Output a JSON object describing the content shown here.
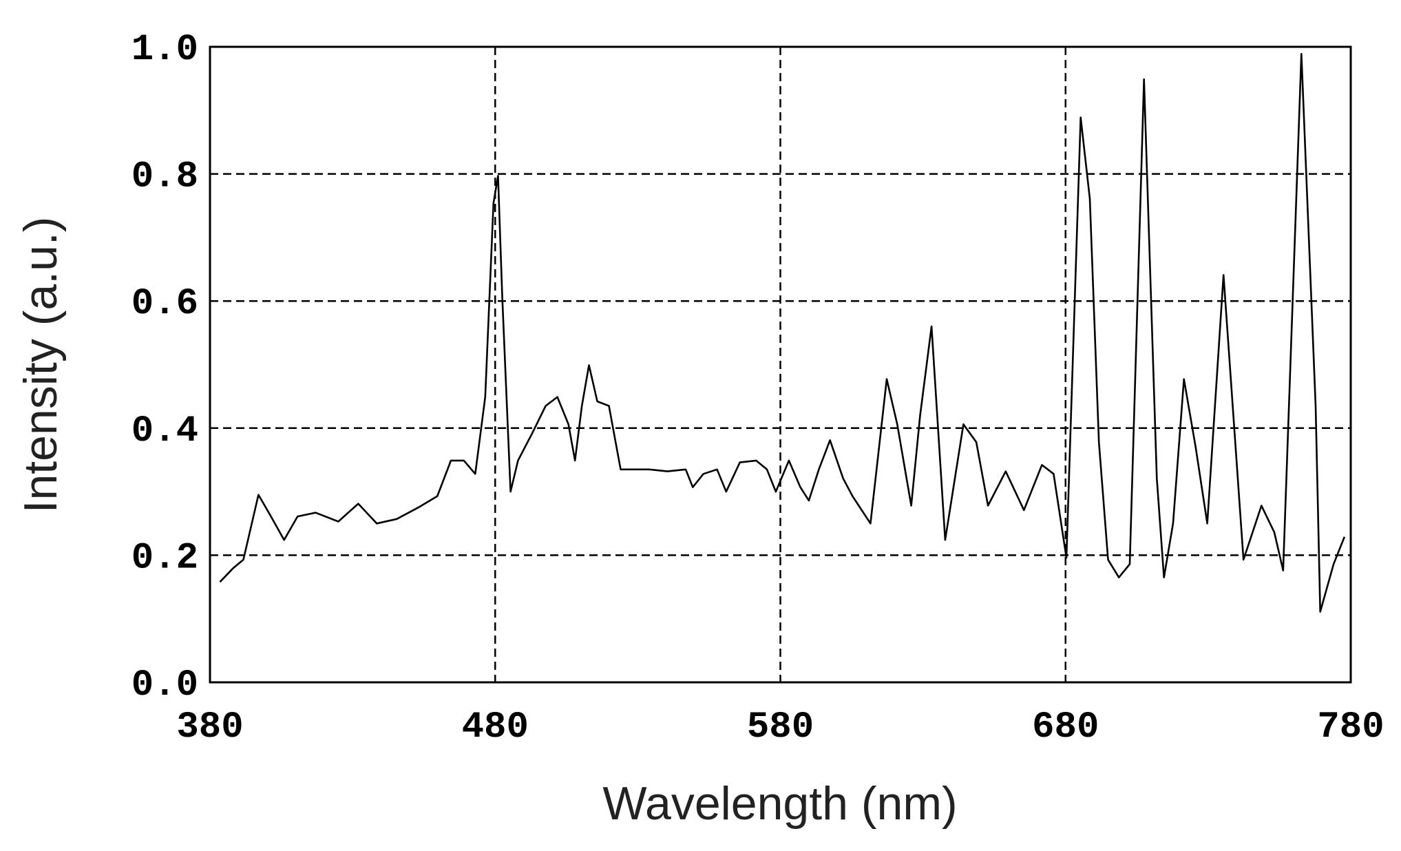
{
  "chart_data": {
    "type": "line",
    "xlabel": "Wavelength (nm)",
    "ylabel": "Intensity (a.u.)",
    "xlim": [
      380,
      780
    ],
    "xticks": [
      380,
      480,
      580,
      680,
      780
    ],
    "ylim": [
      0,
      1
    ],
    "yticks": [
      {
        "value": 0,
        "label": "0.0"
      },
      0.2,
      0.4,
      0.6,
      0.8,
      {
        "value": 1,
        "label": "1.0"
      }
    ],
    "grid": true,
    "x": [
      383.5,
      388,
      391.7,
      397,
      401,
      406,
      410.7,
      417,
      425,
      432,
      438.5,
      445.5,
      453.4,
      459.7,
      464.5,
      469,
      473,
      476.5,
      479.4,
      481,
      482.5,
      485.4,
      488,
      493,
      497.7,
      501.8,
      505.7,
      508,
      510.4,
      512.9,
      515.8,
      519.9,
      524,
      534,
      540.4,
      546.8,
      549.3,
      553,
      557.8,
      561,
      565.8,
      571.5,
      575.3,
      578.4,
      583,
      587,
      590,
      593.5,
      597.4,
      602,
      605.3,
      611.6,
      617.3,
      621,
      625.9,
      629,
      633,
      637.8,
      644.2,
      648.7,
      652.8,
      659,
      665.4,
      671.7,
      675.8,
      680.3,
      685.3,
      688.5,
      691.7,
      694.9,
      698.7,
      702.5,
      707.5,
      712,
      714.5,
      717.7,
      721.5,
      725.6,
      729.7,
      735.4,
      742.4,
      748.7,
      753.2,
      756.3,
      762.7,
      767.7,
      769.3,
      774,
      777.8
    ],
    "series": [
      {
        "color": "#000000",
        "values": [
          0.158,
          0.179,
          0.193,
          0.295,
          0.264,
          0.224,
          0.261,
          0.267,
          0.253,
          0.281,
          0.25,
          0.257,
          0.276,
          0.293,
          0.349,
          0.349,
          0.328,
          0.449,
          0.754,
          0.797,
          0.605,
          0.3,
          0.349,
          0.392,
          0.435,
          0.449,
          0.406,
          0.349,
          0.435,
          0.499,
          0.442,
          0.435,
          0.335,
          0.335,
          0.332,
          0.335,
          0.307,
          0.328,
          0.335,
          0.3,
          0.346,
          0.349,
          0.335,
          0.3,
          0.349,
          0.307,
          0.286,
          0.335,
          0.381,
          0.321,
          0.293,
          0.25,
          0.477,
          0.406,
          0.278,
          0.42,
          0.56,
          0.224,
          0.406,
          0.378,
          0.278,
          0.332,
          0.271,
          0.342,
          0.328,
          0.196,
          0.889,
          0.761,
          0.378,
          0.193,
          0.165,
          0.186,
          0.949,
          0.321,
          0.165,
          0.25,
          0.477,
          0.371,
          0.25,
          0.641,
          0.193,
          0.278,
          0.236,
          0.176,
          0.989,
          0.435,
          0.111,
          0.186,
          0.229
        ]
      }
    ]
  }
}
